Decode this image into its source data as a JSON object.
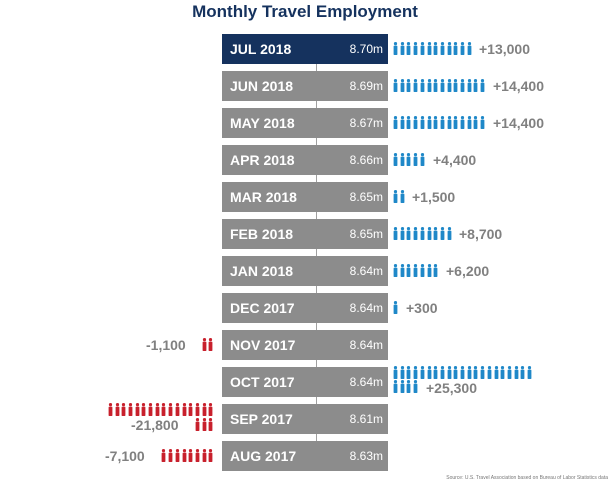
{
  "chart_data": {
    "type": "table",
    "title": "Monthly Travel Employment",
    "rows": [
      {
        "month": "JUL 2018",
        "employment": "8.70m",
        "change": 13000,
        "change_label": "+13,000",
        "highlight": true,
        "icons": 12
      },
      {
        "month": "JUN 2018",
        "employment": "8.69m",
        "change": 14400,
        "change_label": "+14,400",
        "highlight": false,
        "icons": 14
      },
      {
        "month": "MAY 2018",
        "employment": "8.67m",
        "change": 14400,
        "change_label": "+14,400",
        "highlight": false,
        "icons": 14
      },
      {
        "month": "APR 2018",
        "employment": "8.66m",
        "change": 4400,
        "change_label": "+4,400",
        "highlight": false,
        "icons": 5
      },
      {
        "month": "MAR 2018",
        "employment": "8.65m",
        "change": 1500,
        "change_label": "+1,500",
        "highlight": false,
        "icons": 2
      },
      {
        "month": "FEB 2018",
        "employment": "8.65m",
        "change": 8700,
        "change_label": "+8,700",
        "highlight": false,
        "icons": 9
      },
      {
        "month": "JAN 2018",
        "employment": "8.64m",
        "change": 6200,
        "change_label": "+6,200",
        "highlight": false,
        "icons": 7
      },
      {
        "month": "DEC 2017",
        "employment": "8.64m",
        "change": 300,
        "change_label": "+300",
        "highlight": false,
        "icons": 1
      },
      {
        "month": "NOV 2017",
        "employment": "8.64m",
        "change": -1100,
        "change_label": "-1,100",
        "highlight": false,
        "icons": 2
      },
      {
        "month": "OCT 2017",
        "employment": "8.64m",
        "change": 25300,
        "change_label": "+25,300",
        "highlight": false,
        "icons": 25
      },
      {
        "month": "SEP 2017",
        "employment": "8.61m",
        "change": -21800,
        "change_label": "-21,800",
        "highlight": false,
        "icons": 19
      },
      {
        "month": "AUG 2017",
        "employment": "8.63m",
        "change": -7100,
        "change_label": "-7,100",
        "highlight": false,
        "icons": 8
      }
    ]
  },
  "colors": {
    "title": "#15325e",
    "highlight_box": "#15325e",
    "box": "#8c8c8c",
    "axis_line": "#a0a0a0",
    "positive_icon": "#1f88c8",
    "negative_icon": "#c8202c",
    "change_text": "#808080"
  },
  "icon_name": "person-icon",
  "source_note": "Source: U.S. Travel Association based on Bureau of Labor Statistics data"
}
